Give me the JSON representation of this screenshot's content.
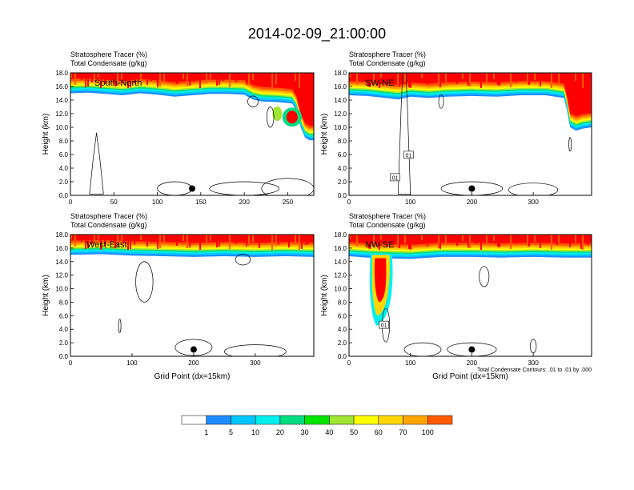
{
  "title": "2014-02-09_21:00:00",
  "panel_header": {
    "line1_name": "Stratosphere Tracer",
    "line1_unit": "(%)",
    "line2_name": "Total Condensate",
    "line2_unit": "(g/kg)"
  },
  "ylabel": "Height (km)",
  "xlabel": "Grid Point (dx=15km)",
  "contour_note": "Total Condensate Contours: .01 to .01 by .000",
  "colorbar": {
    "colors": [
      "#ffffff",
      "#1e8cff",
      "#00c8ff",
      "#00f0f0",
      "#00dc82",
      "#00e600",
      "#a0e632",
      "#ffff00",
      "#ffd700",
      "#ffa500",
      "#ff5a00",
      "#ff0000"
    ],
    "labels": [
      "1",
      "5",
      "10",
      "20",
      "30",
      "40",
      "50",
      "60",
      "70",
      "100"
    ]
  },
  "chart_data": [
    {
      "type": "heatmap",
      "label": "South-North",
      "xlim": [
        0,
        280
      ],
      "ylim": [
        0,
        18
      ],
      "xticks": [
        0,
        50,
        100,
        150,
        200,
        250
      ],
      "yticks": [
        "0.0",
        "2.0",
        "4.0",
        "6.0",
        "8.0",
        "10.0",
        "12.0",
        "14.0",
        "16.0",
        "18.0"
      ],
      "tropopause": [
        [
          0,
          15.5
        ],
        [
          20,
          15.6
        ],
        [
          40,
          15.4
        ],
        [
          60,
          15.2
        ],
        [
          80,
          15.5
        ],
        [
          100,
          15.3
        ],
        [
          120,
          15.0
        ],
        [
          140,
          15.2
        ],
        [
          160,
          15.4
        ],
        [
          180,
          15.4
        ],
        [
          200,
          15.3
        ],
        [
          210,
          14.6
        ],
        [
          220,
          14.3
        ],
        [
          240,
          14.2
        ],
        [
          255,
          14.0
        ],
        [
          260,
          13.0
        ],
        [
          265,
          10.5
        ],
        [
          270,
          9.0
        ],
        [
          275,
          8.6
        ],
        [
          280,
          8.6
        ]
      ],
      "markers": [
        {
          "x": 140,
          "y": 1.0
        }
      ]
    },
    {
      "type": "heatmap",
      "label": "SW-NE",
      "xlim": [
        0,
        395
      ],
      "ylim": [
        0,
        18
      ],
      "xticks": [
        0,
        100,
        200,
        300
      ],
      "yticks": [
        "0.0",
        "2.0",
        "4.0",
        "6.0",
        "8.0",
        "10.0",
        "12.0",
        "14.0",
        "16.0",
        "18.0"
      ],
      "contour_labels": [
        {
          "x": 97,
          "y": 5.9,
          "text": "01"
        },
        {
          "x": 75,
          "y": 2.6,
          "text": "01"
        }
      ],
      "tropopause": [
        [
          0,
          15.2
        ],
        [
          30,
          15.1
        ],
        [
          60,
          14.8
        ],
        [
          80,
          14.6
        ],
        [
          100,
          15.0
        ],
        [
          130,
          14.8
        ],
        [
          160,
          15.0
        ],
        [
          200,
          15.1
        ],
        [
          240,
          15.0
        ],
        [
          280,
          15.2
        ],
        [
          320,
          15.2
        ],
        [
          350,
          14.8
        ],
        [
          355,
          13.0
        ],
        [
          360,
          10.5
        ],
        [
          370,
          10.0
        ],
        [
          380,
          10.3
        ],
        [
          395,
          10.5
        ]
      ],
      "markers": [
        {
          "x": 200,
          "y": 1.0
        }
      ]
    },
    {
      "type": "heatmap",
      "label": "West-East",
      "xlim": [
        0,
        395
      ],
      "ylim": [
        0,
        18
      ],
      "xticks": [
        0,
        100,
        200,
        300
      ],
      "yticks": [
        "0.0",
        "2.0",
        "4.0",
        "6.0",
        "8.0",
        "10.0",
        "12.0",
        "14.0",
        "16.0",
        "18.0"
      ],
      "tropopause": [
        [
          0,
          15.5
        ],
        [
          50,
          15.6
        ],
        [
          100,
          15.4
        ],
        [
          150,
          15.3
        ],
        [
          200,
          15.2
        ],
        [
          250,
          15.3
        ],
        [
          300,
          15.2
        ],
        [
          350,
          15.3
        ],
        [
          395,
          15.2
        ]
      ],
      "markers": [
        {
          "x": 200,
          "y": 1.0
        }
      ]
    },
    {
      "type": "heatmap",
      "label": "NW-SE",
      "xlim": [
        0,
        395
      ],
      "ylim": [
        0,
        18
      ],
      "xticks": [
        0,
        100,
        200,
        300
      ],
      "yticks": [
        "0.0",
        "2.0",
        "4.0",
        "6.0",
        "8.0",
        "10.0",
        "12.0",
        "14.0",
        "16.0",
        "18.0"
      ],
      "contour_labels": [
        {
          "x": 57,
          "y": 4.6,
          "text": "01"
        }
      ],
      "tropopause": [
        [
          0,
          15.3
        ],
        [
          30,
          15.1
        ],
        [
          60,
          15.0
        ],
        [
          100,
          14.9
        ],
        [
          150,
          15.2
        ],
        [
          200,
          15.2
        ],
        [
          250,
          15.1
        ],
        [
          300,
          15.2
        ],
        [
          350,
          15.1
        ],
        [
          395,
          15.1
        ]
      ],
      "markers": [
        {
          "x": 200,
          "y": 1.0
        }
      ]
    }
  ]
}
